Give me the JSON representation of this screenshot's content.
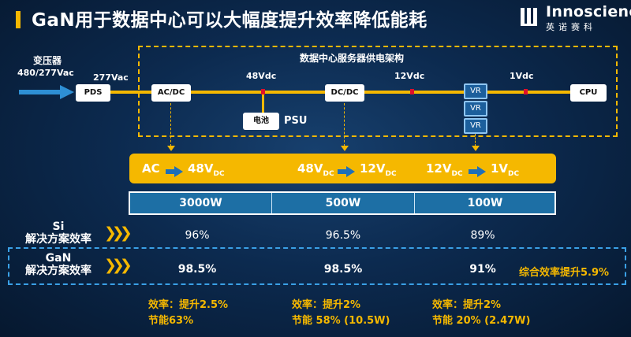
{
  "title": "GaN用于数据中心可以大幅度提升效率降低能耗",
  "logo": {
    "name_en": "Innoscience",
    "name_cn": "英诺赛科"
  },
  "colors": {
    "accent": "#f5b800",
    "bar_blue": "#1d6fa5",
    "marker_red": "#e0102a"
  },
  "diagram": {
    "transformer_label": "变压器",
    "input_voltage": "480/277Vac",
    "bus_voltage": "277Vac",
    "section_title": "数据中心服务器供电架构",
    "nodes": {
      "pds": "PDS",
      "acdc": "AC/DC",
      "dcdc": "DC/DC",
      "vr": "VR",
      "cpu": "CPU",
      "battery": "电池"
    },
    "psu_label": "PSU",
    "voltages": {
      "v48": "48Vdc",
      "v12": "12Vdc",
      "v1": "1Vdc"
    }
  },
  "stages": [
    {
      "from_main": "AC",
      "from_sub": "",
      "to_main": "48V",
      "to_sub": "DC",
      "power": "3000W",
      "si_eff": "96%",
      "gan_eff": "98.5%",
      "note_eff": "效率：提升2.5%",
      "note_save": "节能63%"
    },
    {
      "from_main": "48V",
      "from_sub": "DC",
      "to_main": "12V",
      "to_sub": "DC",
      "power": "500W",
      "si_eff": "96.5%",
      "gan_eff": "98.5%",
      "note_eff": "效率：提升2%",
      "note_save": "节能 58% (10.5W)"
    },
    {
      "from_main": "12V",
      "from_sub": "DC",
      "to_main": "1V",
      "to_sub": "DC",
      "power": "100W",
      "si_eff": "89%",
      "gan_eff": "91%",
      "note_eff": "效率：提升2%",
      "note_save": "节能 20% (2.47W)"
    }
  ],
  "rows": {
    "si_label_1": "Si",
    "si_label_2": "解决方案效率",
    "gan_label_1": "GaN",
    "gan_label_2": "解决方案效率",
    "overall": "综合效率提升5.9%"
  },
  "icons": {
    "arrow": "right-arrow-icon",
    "chevrons": "triple-chevron-icon"
  }
}
